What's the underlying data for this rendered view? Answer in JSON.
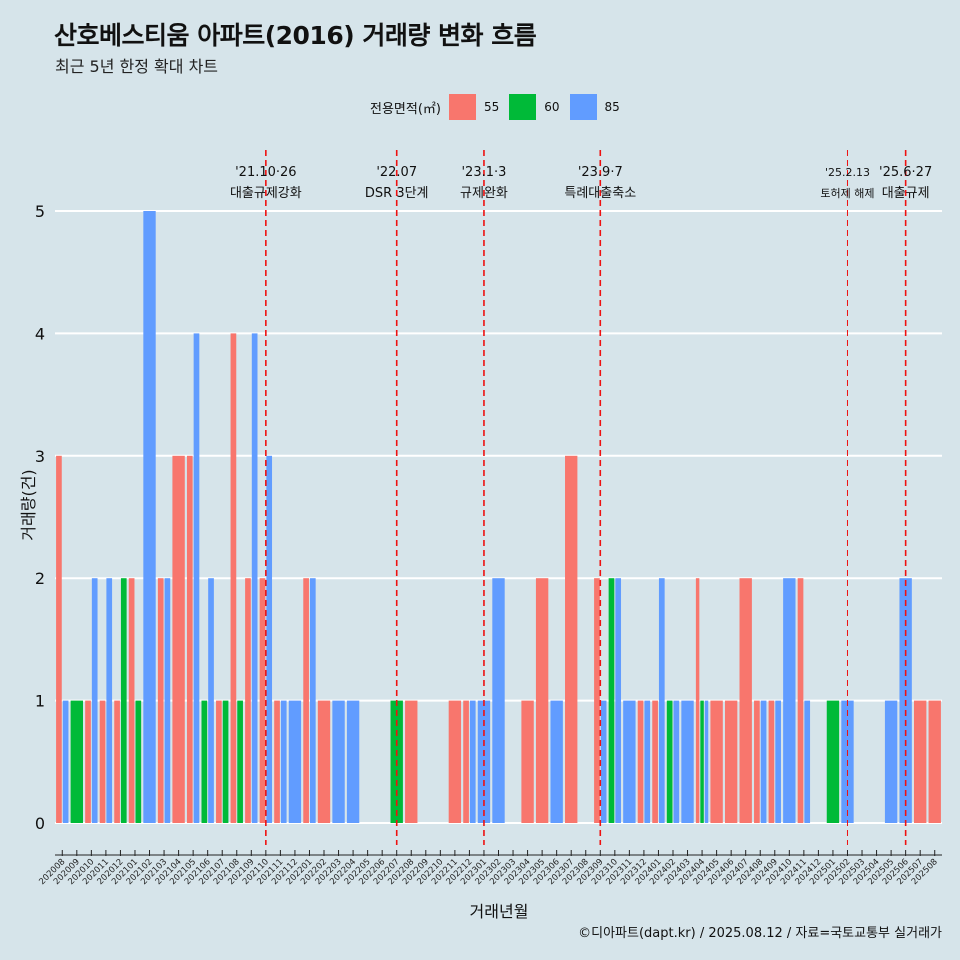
{
  "header": {
    "title": "산호베스티움 아파트(2016) 거래량 변화 흐름",
    "subtitle": "최근 5년 한정 확대 차트"
  },
  "legend": {
    "title": "전용면적(㎡)",
    "items": [
      {
        "label": "55",
        "color": "#F8766D"
      },
      {
        "label": "60",
        "color": "#00BA38"
      },
      {
        "label": "85",
        "color": "#619CFF"
      }
    ]
  },
  "caption": "©디아파트(dapt.kr) / 2025.08.12 / 자료=국토교통부 실거래가",
  "chart_data": {
    "type": "bar",
    "stacking": "dodge",
    "xlabel": "거래년월",
    "ylabel": "거래량(건)",
    "ylim": [
      0,
      5
    ],
    "yticks": [
      0,
      1,
      2,
      3,
      4,
      5
    ],
    "grid": "horizontal",
    "legend_position": "top",
    "categories": [
      "202008",
      "202009",
      "202010",
      "202011",
      "202012",
      "202101",
      "202102",
      "202103",
      "202104",
      "202105",
      "202106",
      "202107",
      "202108",
      "202109",
      "202110",
      "202111",
      "202112",
      "202201",
      "202202",
      "202203",
      "202204",
      "202205",
      "202206",
      "202207",
      "202208",
      "202209",
      "202210",
      "202211",
      "202212",
      "202301",
      "202302",
      "202303",
      "202304",
      "202305",
      "202306",
      "202307",
      "202308",
      "202309",
      "202310",
      "202311",
      "202312",
      "202401",
      "202402",
      "202403",
      "202404",
      "202405",
      "202406",
      "202407",
      "202408",
      "202409",
      "202410",
      "202411",
      "202412",
      "202501",
      "202502",
      "202503",
      "202504",
      "202505",
      "202506",
      "202507",
      "202508"
    ],
    "series": [
      {
        "name": "55",
        "color": "#F8766D",
        "values": [
          3,
          0,
          1,
          1,
          1,
          2,
          0,
          2,
          3,
          3,
          0,
          1,
          4,
          2,
          2,
          1,
          0,
          2,
          1,
          0,
          0,
          0,
          0,
          0,
          1,
          0,
          0,
          1,
          1,
          0,
          0,
          0,
          1,
          2,
          0,
          3,
          0,
          2,
          0,
          0,
          1,
          1,
          0,
          0,
          2,
          1,
          1,
          2,
          1,
          1,
          0,
          2,
          0,
          0,
          0,
          0,
          0,
          0,
          0,
          1,
          1
        ]
      },
      {
        "name": "60",
        "color": "#00BA38",
        "values": [
          0,
          1,
          0,
          0,
          2,
          1,
          0,
          0,
          0,
          0,
          1,
          1,
          1,
          0,
          0,
          0,
          0,
          0,
          0,
          0,
          0,
          0,
          0,
          1,
          0,
          0,
          0,
          0,
          0,
          0,
          0,
          0,
          0,
          0,
          0,
          0,
          0,
          0,
          2,
          0,
          0,
          0,
          1,
          0,
          1,
          0,
          0,
          0,
          0,
          0,
          0,
          0,
          0,
          1,
          0,
          0,
          0,
          0,
          0,
          0,
          0
        ]
      },
      {
        "name": "85",
        "color": "#619CFF",
        "values": [
          1,
          0,
          2,
          2,
          0,
          0,
          5,
          2,
          0,
          4,
          2,
          0,
          0,
          4,
          3,
          1,
          1,
          2,
          0,
          1,
          1,
          0,
          0,
          0,
          0,
          0,
          0,
          0,
          1,
          1,
          2,
          0,
          0,
          0,
          1,
          0,
          0,
          1,
          2,
          1,
          1,
          2,
          1,
          1,
          1,
          0,
          0,
          0,
          1,
          1,
          2,
          1,
          0,
          0,
          1,
          0,
          0,
          1,
          2,
          0,
          0
        ]
      }
    ],
    "annotations": [
      {
        "x": "202110",
        "label": "'21.10·26\n대출규제강화",
        "style": "thick"
      },
      {
        "x": "202207",
        "label": "'22.07\nDSR 3단계",
        "style": "thick"
      },
      {
        "x": "202301",
        "label": "'23.1·3\n규제완화",
        "style": "thick"
      },
      {
        "x": "202309",
        "label": "'23.9·7\n특례대출축소",
        "style": "thick"
      },
      {
        "x": "202502",
        "label": "'25.2.13\n토허제 해제",
        "style": "thin"
      },
      {
        "x": "202506",
        "label": "'25.6·27\n대출규제",
        "style": "thick"
      }
    ]
  }
}
